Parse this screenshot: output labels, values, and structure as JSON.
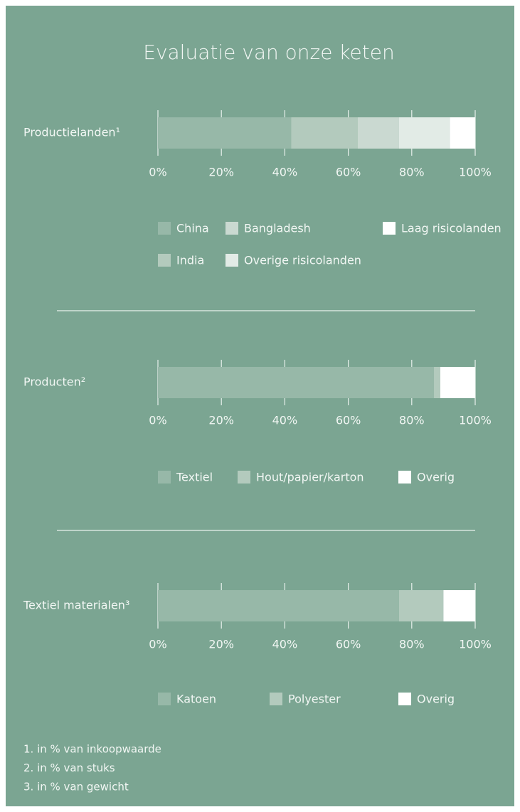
{
  "title": "Evaluatie van onze keten",
  "chart_data": [
    {
      "type": "stacked_bar",
      "categories": [
        "Productielanden¹"
      ],
      "series": [
        {
          "name": "China",
          "color": "#97b8a8",
          "values": [
            42
          ]
        },
        {
          "name": "India",
          "color": "#b3cabd",
          "values": [
            21
          ]
        },
        {
          "name": "Bangladesh",
          "color": "#cad9d1",
          "values": [
            13
          ]
        },
        {
          "name": "Overige risicolanden",
          "color": "#e2ebe6",
          "values": [
            16
          ]
        },
        {
          "name": "Laag risicolanden",
          "color": "#ffffff",
          "values": [
            8
          ]
        }
      ],
      "xlim": [
        0,
        100
      ],
      "xticks": [
        {
          "value": 0,
          "label": "0%"
        },
        {
          "value": 20,
          "label": "20%"
        },
        {
          "value": 40,
          "label": "40%"
        },
        {
          "value": 60,
          "label": "60%"
        },
        {
          "value": 80,
          "label": "80%"
        },
        {
          "value": 100,
          "label": "100%"
        }
      ]
    },
    {
      "type": "stacked_bar",
      "categories": [
        "Producten²"
      ],
      "series": [
        {
          "name": "Textiel",
          "color": "#97b8a8",
          "values": [
            87
          ]
        },
        {
          "name": "Hout/papier/karton",
          "color": "#b3cabd",
          "values": [
            2
          ]
        },
        {
          "name": "Overig",
          "color": "#ffffff",
          "values": [
            11
          ]
        }
      ],
      "xlim": [
        0,
        100
      ],
      "xticks": [
        {
          "value": 0,
          "label": "0%"
        },
        {
          "value": 20,
          "label": "20%"
        },
        {
          "value": 40,
          "label": "40%"
        },
        {
          "value": 60,
          "label": "60%"
        },
        {
          "value": 80,
          "label": "80%"
        },
        {
          "value": 100,
          "label": "100%"
        }
      ]
    },
    {
      "type": "stacked_bar",
      "categories": [
        "Textiel materialen³"
      ],
      "series": [
        {
          "name": "Katoen",
          "color": "#97b8a8",
          "values": [
            76
          ]
        },
        {
          "name": "Polyester",
          "color": "#b3cabd",
          "values": [
            14
          ]
        },
        {
          "name": "Overig",
          "color": "#ffffff",
          "values": [
            10
          ]
        }
      ],
      "xlim": [
        0,
        100
      ],
      "xticks": [
        {
          "value": 0,
          "label": "0%"
        },
        {
          "value": 20,
          "label": "20%"
        },
        {
          "value": 40,
          "label": "40%"
        },
        {
          "value": 60,
          "label": "60%"
        },
        {
          "value": 80,
          "label": "80%"
        },
        {
          "value": 100,
          "label": "100%"
        }
      ]
    }
  ],
  "footnotes": [
    "1. in % van inkoopwaarde",
    "2. in % van stuks",
    "3. in % van gewicht"
  ]
}
